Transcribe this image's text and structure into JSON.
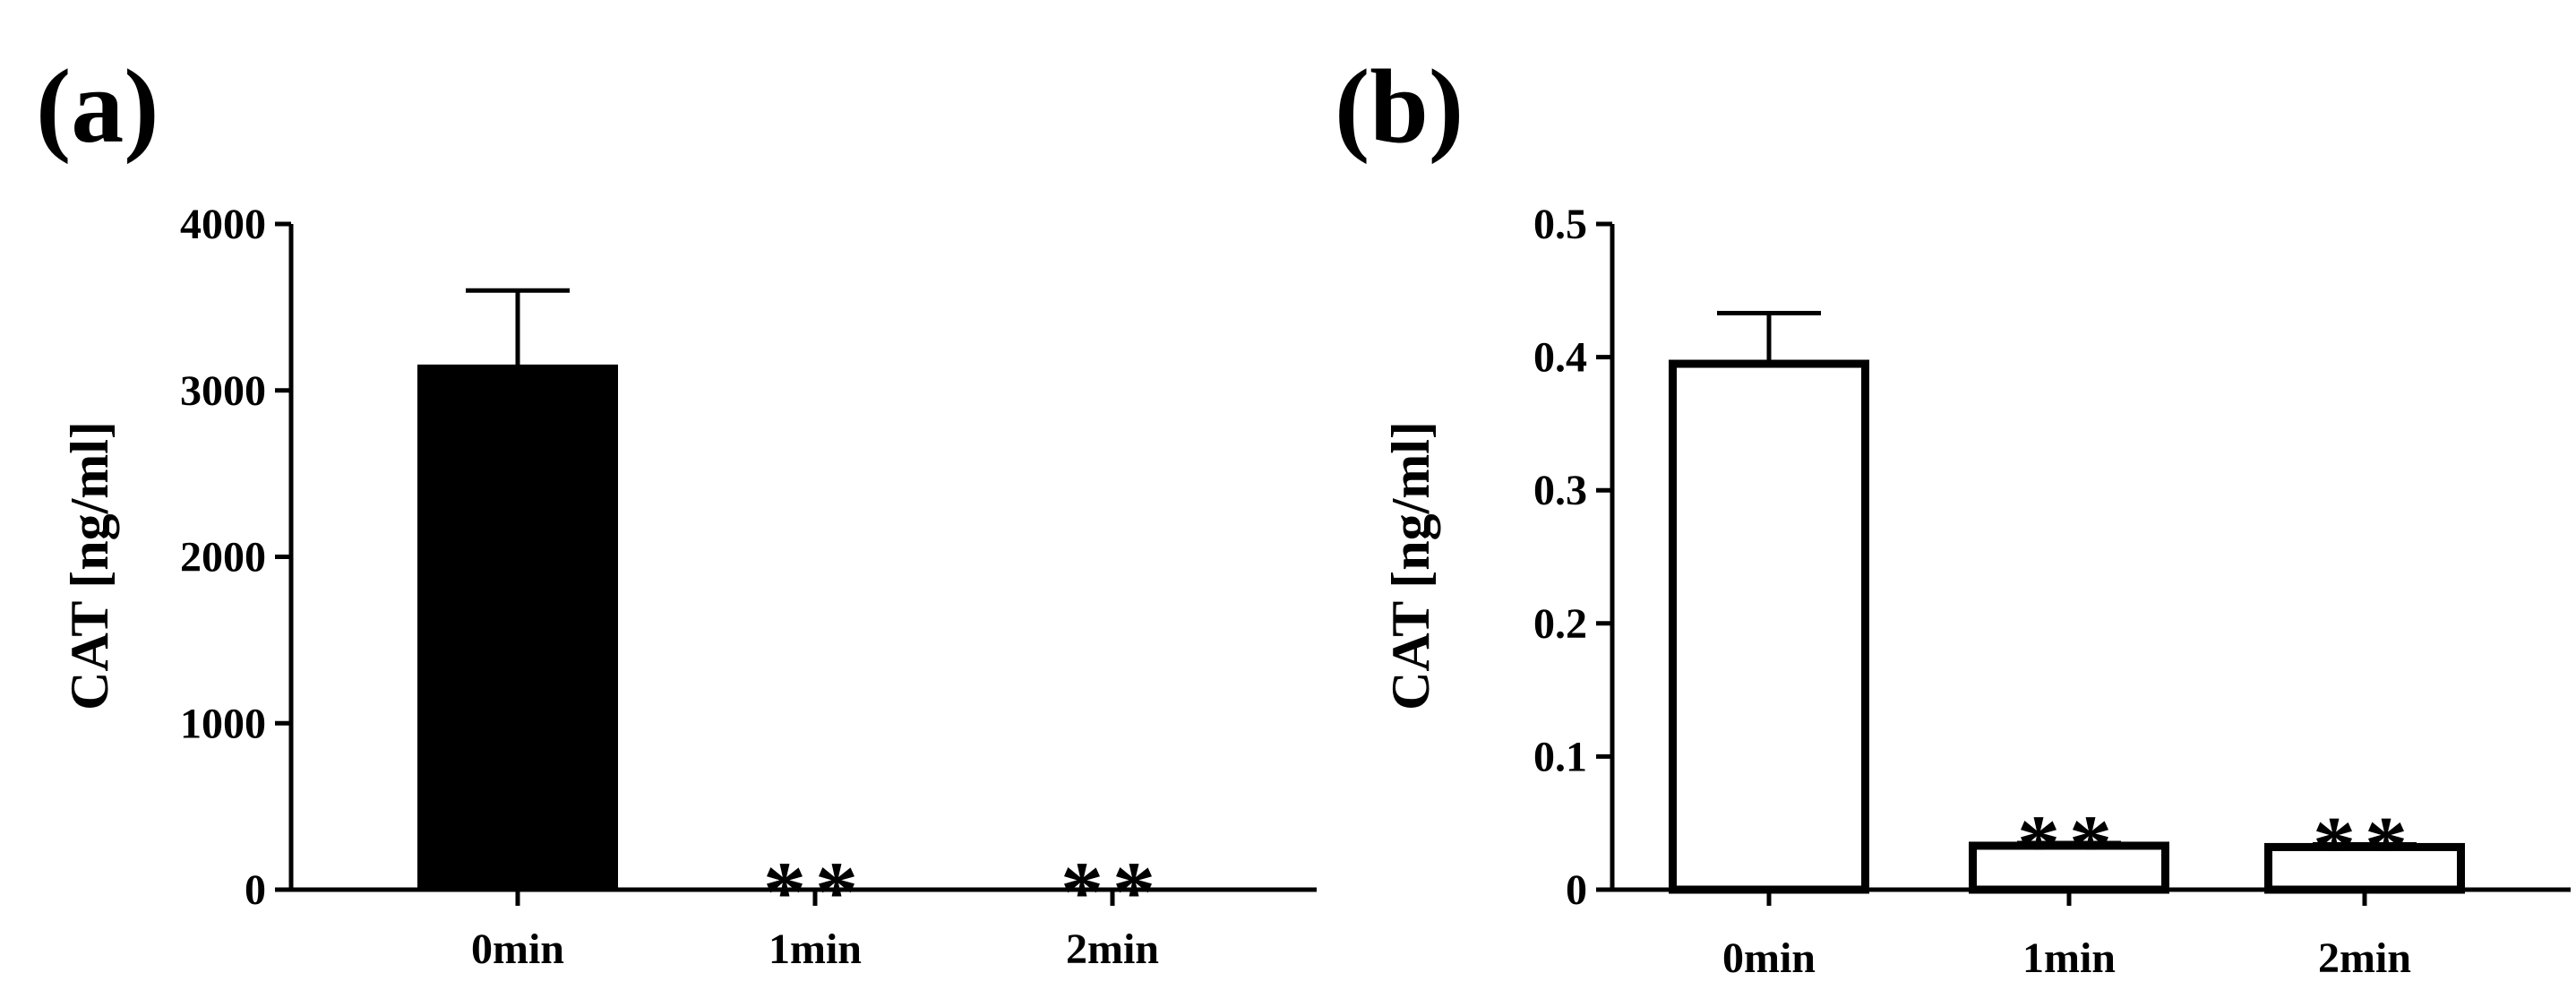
{
  "panels": {
    "a": {
      "label": "(a)"
    },
    "b": {
      "label": "(b)"
    }
  },
  "chart_data": [
    {
      "type": "bar",
      "panel": "a",
      "categories": [
        "0min",
        "1min",
        "2min"
      ],
      "values": [
        3150,
        0,
        0
      ],
      "error": [
        450,
        null,
        null
      ],
      "bar_colors": [
        "#000000",
        "#000000",
        "#000000"
      ],
      "annotations": [
        "",
        "**",
        "**"
      ],
      "ylabel": "CAT [ng/ml]",
      "ylim": [
        0,
        4000
      ],
      "yticks": [
        0,
        1000,
        2000,
        3000,
        4000
      ],
      "ytick_labels": [
        "0",
        "1000",
        "2000",
        "3000",
        "4000"
      ],
      "grid": false
    },
    {
      "type": "bar",
      "panel": "b",
      "categories": [
        "0min",
        "1min",
        "2min"
      ],
      "values": [
        0.395,
        0.033,
        0.032
      ],
      "error": [
        0.038,
        0.002,
        0.002
      ],
      "bar_colors": [
        "#ffffff",
        "#ffffff",
        "#ffffff"
      ],
      "annotations": [
        "",
        "**",
        "**"
      ],
      "ylabel": "CAT [ng/ml]",
      "ylim": [
        0,
        0.5
      ],
      "yticks": [
        0,
        0.1,
        0.2,
        0.3,
        0.4,
        0.5
      ],
      "ytick_labels": [
        "0",
        "0.1",
        "0.2",
        "0.3",
        "0.4",
        "0.5"
      ],
      "grid": false
    }
  ]
}
